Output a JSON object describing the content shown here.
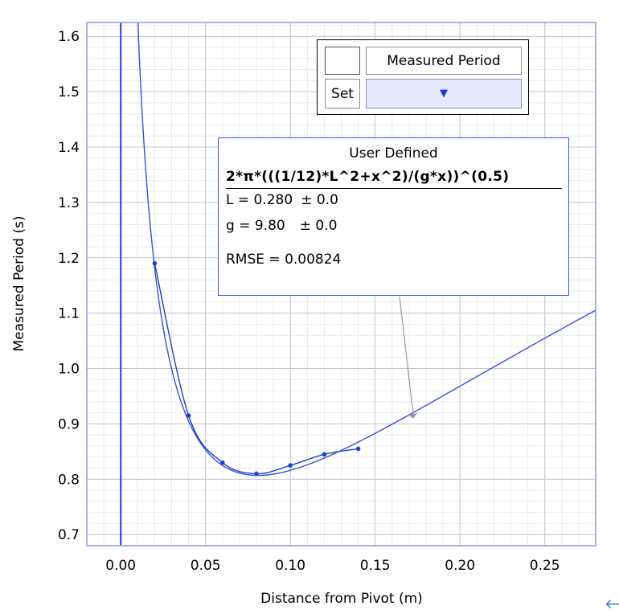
{
  "chart_data": {
    "type": "scatter",
    "xlabel": "Distance from Pivot (m)",
    "ylabel": "Measured Period (s)",
    "xlim": [
      -0.02,
      0.28
    ],
    "ylim": [
      0.68,
      1.625
    ],
    "x_ticks": [
      "0.00",
      "0.05",
      "0.10",
      "0.15",
      "0.20",
      "0.25"
    ],
    "y_ticks": [
      "0.7",
      "0.8",
      "0.9",
      "1.0",
      "1.1",
      "1.2",
      "1.3",
      "1.4",
      "1.5",
      "1.6"
    ],
    "grid": true,
    "series": [
      {
        "name": "Measured Period",
        "x": [
          0.02,
          0.04,
          0.06,
          0.08,
          0.1,
          0.12,
          0.14
        ],
        "y": [
          1.19,
          0.915,
          0.83,
          0.81,
          0.825,
          0.845,
          0.855
        ]
      }
    ],
    "fit": {
      "label": "User Defined",
      "expression": "2*π*(((1/12)*L^2+x^2)/(g*x))^(0.5)",
      "L": 0.28,
      "g": 9.8
    },
    "colors": {
      "series": "#1f3fd3",
      "fit_curve": "#3a4fdc",
      "grid_major": "#c6c6c6",
      "grid_minor": "#ebebeb",
      "frame": "#8e96e8",
      "leader": "#999999"
    }
  },
  "legend": {
    "series_label": "Measured Period",
    "set_label": "Set",
    "dropdown_arrow": "▼"
  },
  "fit_box": {
    "title": "User Defined",
    "formula": "2*π*(((1/12)*L^2+x^2)/(g*x))^(0.5)",
    "param_l": "L = 0.280",
    "param_l_unc": "± 0.0",
    "param_g": "g = 9.80",
    "param_g_unc": "± 0.0",
    "rmse": "RMSE = 0.00824"
  },
  "nav_icon": "🡐"
}
